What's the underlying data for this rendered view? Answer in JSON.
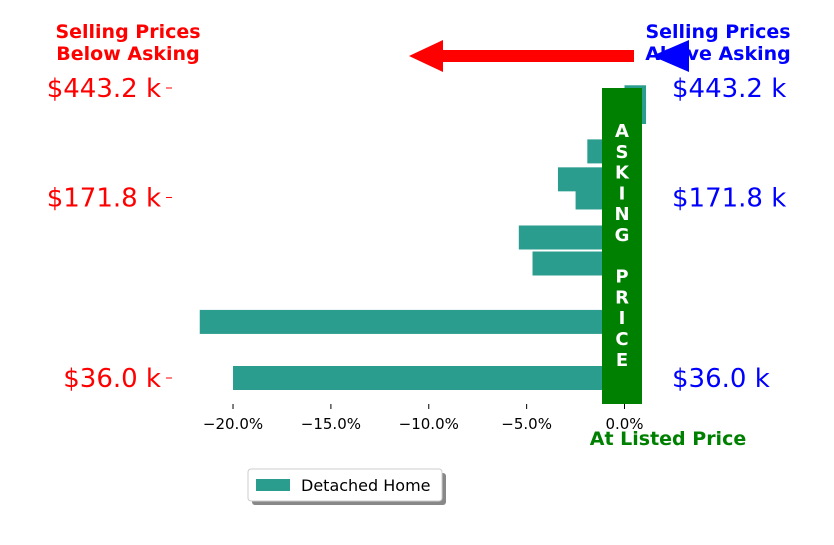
{
  "chart_data": {
    "type": "bar",
    "orientation": "horizontal",
    "series": [
      {
        "name": "Detached Home",
        "color": "#2a9d8f",
        "bars": [
          {
            "level": 36.0,
            "value": -20.0
          },
          {
            "level": 58.5,
            "value": -21.7
          },
          {
            "level": 97.0,
            "value": -4.7
          },
          {
            "level": 121.5,
            "value": -5.4
          },
          {
            "level": 171.8,
            "value": -2.5
          },
          {
            "level": 201.0,
            "value": -3.4
          },
          {
            "level": 256.0,
            "value": -1.9
          },
          {
            "level": 360.0,
            "value": 1.1
          },
          {
            "level": 409.0,
            "value": 1.1
          }
        ]
      }
    ],
    "xlim": [
      -22.3,
      1.2
    ],
    "xticks": [
      -20.0,
      -15.0,
      -10.0,
      -5.0,
      0.0
    ],
    "xtick_labels": [
      "−20.0%",
      "−15.0%",
      "−10.0%",
      "−5.0%",
      "0.0%"
    ],
    "yticks": [
      36.0,
      171.8,
      443.2
    ],
    "ytick_labels": [
      "$36.0 k",
      "$171.8 k",
      "$443.2 k"
    ],
    "left_header": [
      "Selling Prices",
      "Below Asking"
    ],
    "right_header": [
      "Selling Prices",
      "Above Asking"
    ],
    "xlabel": "At Listed Price",
    "asking_label": [
      "A",
      "S",
      "K",
      "I",
      "N",
      "G",
      "",
      "P",
      "R",
      "I",
      "C",
      "E"
    ],
    "legend": {
      "placement": "below-center",
      "label": "Detached Home"
    },
    "colors": {
      "below": "#ff0000",
      "above": "#0000ff",
      "asking": "#008000",
      "bar": "#2a9d8f"
    },
    "grid": false
  }
}
